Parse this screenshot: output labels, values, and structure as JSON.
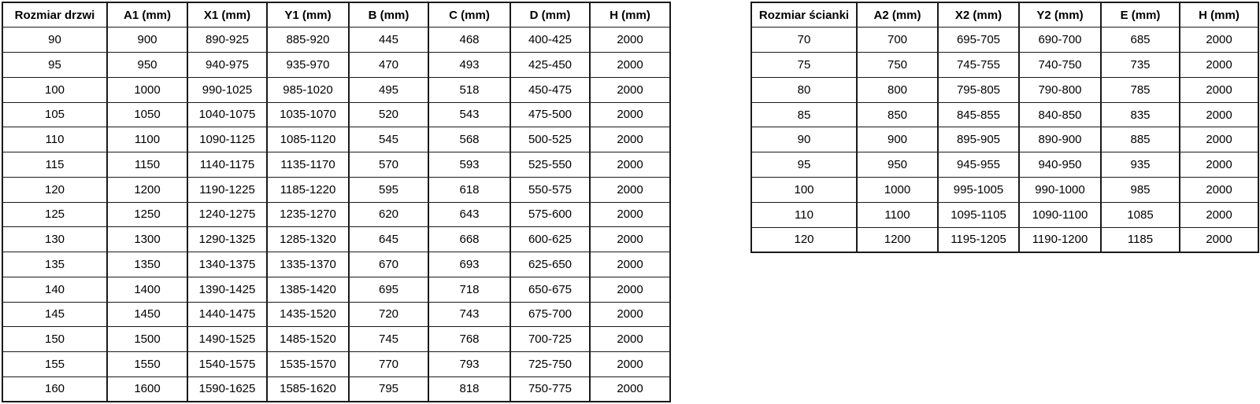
{
  "left_table": {
    "title": "door sizes",
    "headers": [
      "Rozmiar drzwi",
      "A1 (mm)",
      "X1 (mm)",
      "Y1 (mm)",
      "B (mm)",
      "C (mm)",
      "D (mm)",
      "H (mm)"
    ],
    "rows": [
      [
        "90",
        "900",
        "890-925",
        "885-920",
        "445",
        "468",
        "400-425",
        "2000"
      ],
      [
        "95",
        "950",
        "940-975",
        "935-970",
        "470",
        "493",
        "425-450",
        "2000"
      ],
      [
        "100",
        "1000",
        "990-1025",
        "985-1020",
        "495",
        "518",
        "450-475",
        "2000"
      ],
      [
        "105",
        "1050",
        "1040-1075",
        "1035-1070",
        "520",
        "543",
        "475-500",
        "2000"
      ],
      [
        "110",
        "1100",
        "1090-1125",
        "1085-1120",
        "545",
        "568",
        "500-525",
        "2000"
      ],
      [
        "115",
        "1150",
        "1140-1175",
        "1135-1170",
        "570",
        "593",
        "525-550",
        "2000"
      ],
      [
        "120",
        "1200",
        "1190-1225",
        "1185-1220",
        "595",
        "618",
        "550-575",
        "2000"
      ],
      [
        "125",
        "1250",
        "1240-1275",
        "1235-1270",
        "620",
        "643",
        "575-600",
        "2000"
      ],
      [
        "130",
        "1300",
        "1290-1325",
        "1285-1320",
        "645",
        "668",
        "600-625",
        "2000"
      ],
      [
        "135",
        "1350",
        "1340-1375",
        "1335-1370",
        "670",
        "693",
        "625-650",
        "2000"
      ],
      [
        "140",
        "1400",
        "1390-1425",
        "1385-1420",
        "695",
        "718",
        "650-675",
        "2000"
      ],
      [
        "145",
        "1450",
        "1440-1475",
        "1435-1520",
        "720",
        "743",
        "675-700",
        "2000"
      ],
      [
        "150",
        "1500",
        "1490-1525",
        "1485-1520",
        "745",
        "768",
        "700-725",
        "2000"
      ],
      [
        "155",
        "1550",
        "1540-1575",
        "1535-1570",
        "770",
        "793",
        "725-750",
        "2000"
      ],
      [
        "160",
        "1600",
        "1590-1625",
        "1585-1620",
        "795",
        "818",
        "750-775",
        "2000"
      ]
    ]
  },
  "right_table": {
    "title": "wall panel sizes",
    "headers": [
      "Rozmiar ścianki",
      "A2 (mm)",
      "X2 (mm)",
      "Y2 (mm)",
      "E (mm)",
      "H (mm)"
    ],
    "rows": [
      [
        "70",
        "700",
        "695-705",
        "690-700",
        "685",
        "2000"
      ],
      [
        "75",
        "750",
        "745-755",
        "740-750",
        "735",
        "2000"
      ],
      [
        "80",
        "800",
        "795-805",
        "790-800",
        "785",
        "2000"
      ],
      [
        "85",
        "850",
        "845-855",
        "840-850",
        "835",
        "2000"
      ],
      [
        "90",
        "900",
        "895-905",
        "890-900",
        "885",
        "2000"
      ],
      [
        "95",
        "950",
        "945-955",
        "940-950",
        "935",
        "2000"
      ],
      [
        "100",
        "1000",
        "995-1005",
        "990-1000",
        "985",
        "2000"
      ],
      [
        "110",
        "1100",
        "1095-1105",
        "1090-1100",
        "1085",
        "2000"
      ],
      [
        "120",
        "1200",
        "1195-1205",
        "1190-1200",
        "1185",
        "2000"
      ]
    ]
  },
  "colors": {
    "background": "#ffffff",
    "border": "#1a1a1a",
    "text": "#000000"
  }
}
